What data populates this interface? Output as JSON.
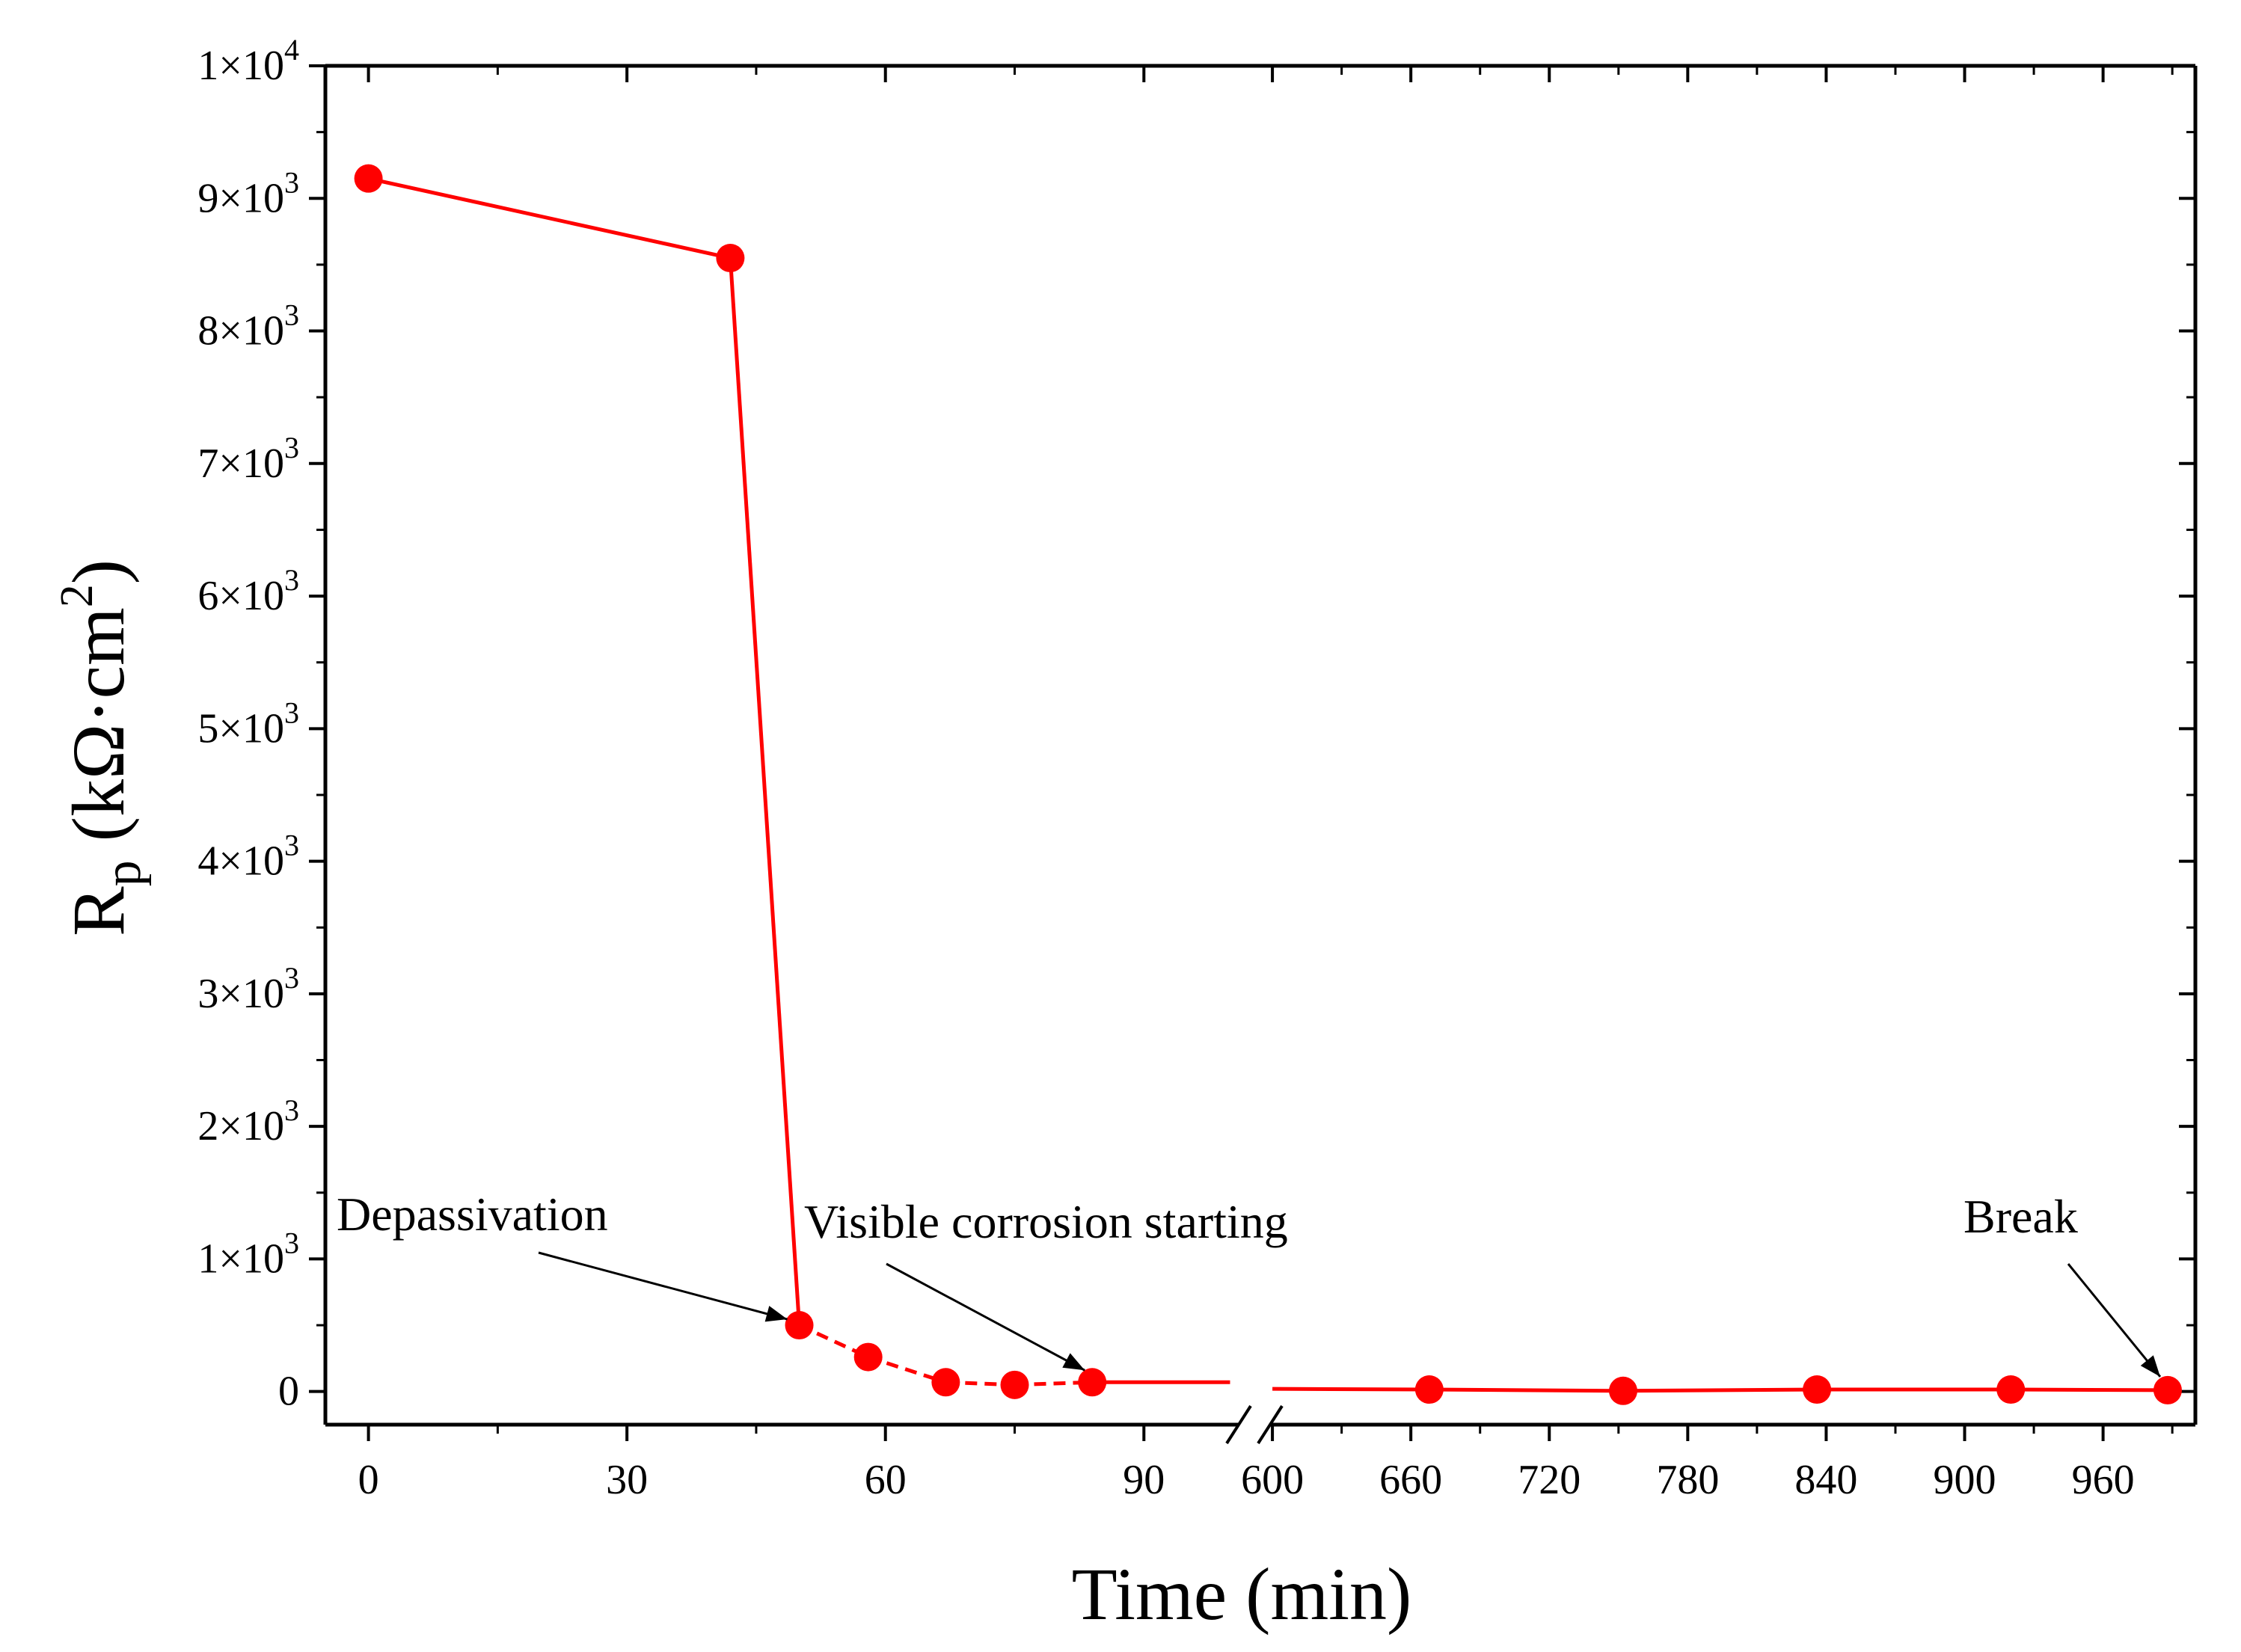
{
  "chart_data": {
    "type": "line",
    "title": "",
    "xlabel": "Time (min)",
    "ylabel": {
      "main": "R",
      "sub": "p",
      "unit": " (kΩ·cm",
      "sup": "2",
      "close": ")"
    },
    "series": [
      {
        "name": "Rp",
        "color": "#ff0000",
        "points": [
          {
            "x": 0,
            "y": 9150
          },
          {
            "x": 42,
            "y": 8550
          },
          {
            "x": 50,
            "y": 500
          },
          {
            "x": 58,
            "y": 260
          },
          {
            "x": 67,
            "y": 70
          },
          {
            "x": 75,
            "y": 50
          },
          {
            "x": 84,
            "y": 70
          },
          {
            "x": 668,
            "y": 15
          },
          {
            "x": 752,
            "y": 5
          },
          {
            "x": 836,
            "y": 15
          },
          {
            "x": 920,
            "y": 15
          },
          {
            "x": 988,
            "y": 10
          }
        ]
      }
    ],
    "dashed_segment_x": [
      50,
      84
    ],
    "segment_ends": {
      "left_x_end": 100,
      "left_y_end": 70,
      "right_x_start": 600,
      "right_y_start": 20
    },
    "x_segments": [
      {
        "range": [
          -5,
          101
        ],
        "ticks": [
          0,
          30,
          60,
          90
        ]
      },
      {
        "range": [
          599,
          1000
        ],
        "ticks": [
          600,
          660,
          720,
          780,
          840,
          900,
          960
        ]
      }
    ],
    "xtick_labels": [
      "0",
      "30",
      "60",
      "90",
      "600",
      "660",
      "720",
      "780",
      "840",
      "900",
      "960"
    ],
    "ylim": [
      -250,
      10000
    ],
    "yticks": [
      {
        "v": 0,
        "label": "0"
      },
      {
        "v": 1000,
        "mant": "1×10",
        "exp": "3"
      },
      {
        "v": 2000,
        "mant": "2×10",
        "exp": "3"
      },
      {
        "v": 3000,
        "mant": "3×10",
        "exp": "3"
      },
      {
        "v": 4000,
        "mant": "4×10",
        "exp": "3"
      },
      {
        "v": 5000,
        "mant": "5×10",
        "exp": "3"
      },
      {
        "v": 6000,
        "mant": "6×10",
        "exp": "3"
      },
      {
        "v": 7000,
        "mant": "7×10",
        "exp": "3"
      },
      {
        "v": 8000,
        "mant": "8×10",
        "exp": "3"
      },
      {
        "v": 9000,
        "mant": "9×10",
        "exp": "3"
      },
      {
        "v": 10000,
        "mant": "1×10",
        "exp": "4"
      }
    ],
    "annotations": [
      {
        "text": "Depassivation",
        "target": {
          "x": 50,
          "y": 500
        }
      },
      {
        "text": "Visible corrosion starting",
        "target": {
          "x": 84,
          "y": 70
        }
      },
      {
        "text": "Break",
        "target": {
          "x": 988,
          "y": 10
        }
      }
    ]
  }
}
